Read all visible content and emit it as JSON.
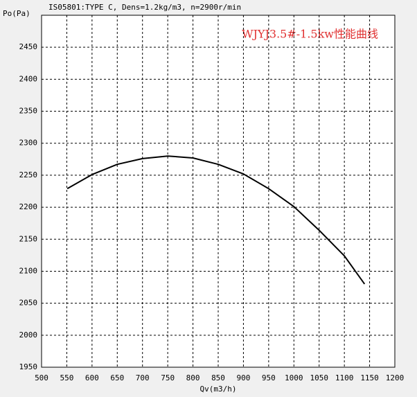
{
  "chart_data": {
    "type": "line",
    "title": "IS05801:TYPE C, Dens=1.2kg/m3, n=2900r/min",
    "annotation": "WJYJ3.5#-1.5kw性能曲线",
    "x_label": "Qv(m3/h)",
    "y_label": "Po(Pa)",
    "x": [
      551,
      600,
      650,
      700,
      750,
      800,
      850,
      900,
      950,
      1000,
      1050,
      1100,
      1140
    ],
    "series": [
      {
        "name": "Po",
        "color": "#000000",
        "values": [
          2229,
          2251,
          2267,
          2276,
          2280,
          2277,
          2267,
          2252,
          2229,
          2201,
          2164,
          2124,
          2080
        ]
      }
    ],
    "xlim": [
      500,
      1200
    ],
    "xticks": [
      500,
      550,
      600,
      650,
      700,
      750,
      800,
      850,
      900,
      950,
      1000,
      1050,
      1100,
      1150,
      1200
    ],
    "ylim": [
      1950,
      2500
    ],
    "yticks": [
      1950,
      2000,
      2050,
      2100,
      2150,
      2200,
      2250,
      2300,
      2350,
      2400,
      2450
    ],
    "grid": true,
    "annotation_color": "#e03030"
  }
}
